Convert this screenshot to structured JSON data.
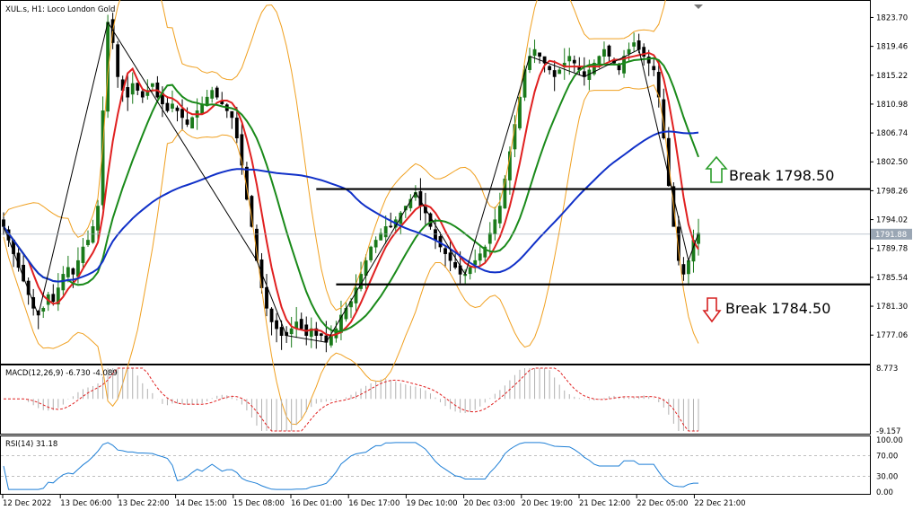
{
  "window": {
    "title": "XUL.s, H1:  Loco London Gold"
  },
  "chart_data": {
    "type": "candlestick",
    "symbol": "XUL.s",
    "timeframe": "H1",
    "instrument": "Loco London Gold",
    "price_axis": {
      "range": [
        1773.0,
        1826.0
      ],
      "ticks": [
        "1823.70",
        "1819.46",
        "1815.22",
        "1810.98",
        "1806.74",
        "1802.50",
        "1798.26",
        "1794.02",
        "1789.78",
        "1785.54",
        "1781.30",
        "1777.06"
      ],
      "current_price": "1791.88"
    },
    "time_axis": {
      "ticks": [
        "12 Dec 2022",
        "13 Dec 06:00",
        "13 Dec 22:00",
        "14 Dec 15:00",
        "15 Dec 08:00",
        "16 Dec 01:00",
        "16 Dec 17:00",
        "19 Dec 10:00",
        "20 Dec 03:00",
        "20 Dec 19:00",
        "21 Dec 12:00",
        "22 Dec 05:00",
        "22 Dec 21:00"
      ]
    },
    "price_series": [
      1793,
      1791,
      1789,
      1787,
      1785,
      1783,
      1781,
      1780,
      1781,
      1783,
      1782,
      1784,
      1786,
      1787,
      1786,
      1788,
      1790,
      1791,
      1793,
      1796,
      1810,
      1823,
      1820,
      1815,
      1813,
      1812,
      1814,
      1813,
      1812,
      1813,
      1814,
      1812,
      1811,
      1810,
      1811,
      1810,
      1809,
      1808,
      1809,
      1810,
      1811,
      1812,
      1813,
      1812,
      1811,
      1810,
      1809,
      1806,
      1802,
      1797,
      1793,
      1788,
      1784,
      1781,
      1779,
      1778,
      1777,
      1777,
      1778,
      1779,
      1778,
      1777,
      1778,
      1777,
      1777,
      1776,
      1777,
      1778,
      1780,
      1781,
      1782,
      1784,
      1786,
      1788,
      1790,
      1791,
      1792,
      1793,
      1793,
      1794,
      1795,
      1796,
      1797,
      1798,
      1796,
      1795,
      1793,
      1791,
      1790,
      1789,
      1788,
      1787,
      1786,
      1786,
      1787,
      1788,
      1789,
      1790,
      1792,
      1794,
      1796,
      1800,
      1804,
      1808,
      1812,
      1816,
      1818,
      1819,
      1818,
      1817,
      1816,
      1815,
      1816,
      1817,
      1818,
      1817,
      1816,
      1815,
      1816,
      1817,
      1818,
      1819,
      1818,
      1817,
      1816,
      1818,
      1819,
      1820,
      1819,
      1818,
      1817,
      1816,
      1812,
      1806,
      1799,
      1793,
      1788,
      1786,
      1788,
      1791,
      1792
    ],
    "series": [
      {
        "name": "MA fast (red)",
        "color": "#e02020"
      },
      {
        "name": "MA medium (green)",
        "color": "#1a8a1a"
      },
      {
        "name": "MA slow (blue)",
        "color": "#1030c8"
      },
      {
        "name": "Bollinger Bands",
        "color": "#f0a020"
      },
      {
        "name": "ZigZag",
        "color": "#000000"
      }
    ],
    "levels": [
      {
        "label": "Break 1798.50",
        "price": 1798.5,
        "direction": "up",
        "color": "#2a9d2a"
      },
      {
        "label": "Break 1784.50",
        "price": 1784.5,
        "direction": "down",
        "color": "#d62020"
      }
    ],
    "macd": {
      "label": "MACD(12,26,9) -6.730 -4.089",
      "ticks": [
        "8.773",
        "-9.157"
      ],
      "range": [
        -9.157,
        8.773
      ]
    },
    "rsi": {
      "label": "RSI(14) 31.18",
      "ticks": [
        "100.00",
        "70.00",
        "30.00",
        "0.00"
      ],
      "levels": [
        70,
        30
      ]
    },
    "grid": false,
    "legend": "none"
  }
}
